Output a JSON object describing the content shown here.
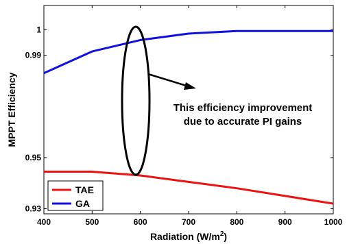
{
  "chart_data": {
    "type": "line",
    "title": "",
    "xlabel": "Radiation (W/m",
    "xlabel_sup": "2",
    "xlabel_suffix": ")",
    "ylabel": "MPPT Efficiency",
    "xlim": [
      400,
      1000
    ],
    "ylim": [
      0.928,
      1.0095
    ],
    "x_ticks": [
      400,
      500,
      600,
      700,
      800,
      900,
      1000
    ],
    "y_ticks": [
      0.93,
      0.95,
      0.99,
      1
    ],
    "y_tick_labels": [
      "0.93",
      "0.95",
      "0.99",
      "1"
    ],
    "x": [
      400,
      500,
      600,
      700,
      800,
      900,
      1000
    ],
    "series": [
      {
        "name": "TAE",
        "color": "#ee1111",
        "values": [
          0.9445,
          0.9445,
          0.943,
          0.9405,
          0.938,
          0.935,
          0.932
        ]
      },
      {
        "name": "GA",
        "color": "#1111dd",
        "values": [
          0.983,
          0.9915,
          0.996,
          0.9985,
          0.9995,
          0.9995,
          0.9995
        ]
      }
    ],
    "grid": false,
    "legend_position": "bottom-left",
    "annotation": {
      "lines": [
        "This efficiency improvement",
        "due to accurate PI gains"
      ]
    }
  }
}
